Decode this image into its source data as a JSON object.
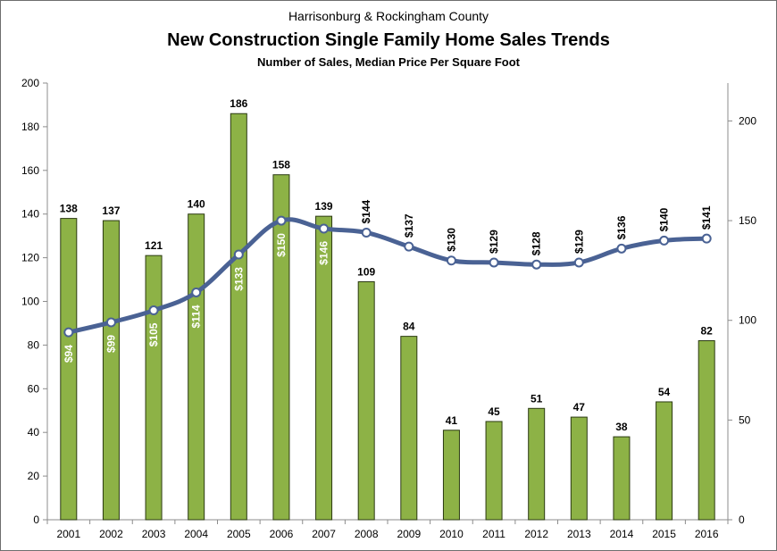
{
  "chart_data": {
    "type": "bar+line",
    "title_top": "Harrisonburg & Rockingham County",
    "title": "New Construction Single Family Home Sales Trends",
    "subtitle": "Number of Sales, Median Price Per Square Foot",
    "categories": [
      "2001",
      "2002",
      "2003",
      "2004",
      "2005",
      "2006",
      "2007",
      "2008",
      "2009",
      "2010",
      "2011",
      "2012",
      "2013",
      "2014",
      "2015",
      "2016"
    ],
    "bars": {
      "values": [
        138,
        137,
        121,
        140,
        186,
        158,
        139,
        109,
        84,
        41,
        45,
        51,
        47,
        38,
        54,
        82
      ],
      "labels": [
        "138",
        "137",
        "121",
        "140",
        "186",
        "158",
        "139",
        "109",
        "84",
        "41",
        "45",
        "51",
        "47",
        "38",
        "54",
        "82"
      ],
      "axis": "left",
      "color": "#8db246",
      "edge_color": "#2b3a12"
    },
    "line": {
      "values": [
        94,
        99,
        105,
        114,
        133,
        150,
        146,
        144,
        137,
        130,
        129,
        128,
        129,
        136,
        140,
        141
      ],
      "labels": [
        "$94",
        "$99",
        "$105",
        "$114",
        "$133",
        "$150",
        "$146",
        "$144",
        "$137",
        "$130",
        "$129",
        "$128",
        "$129",
        "$136",
        "$140",
        "$141"
      ],
      "axis": "right",
      "color": "#4a6294",
      "marker_fill": "#ffffff"
    },
    "left_axis": {
      "ylim": [
        0,
        200
      ],
      "ticks": [
        "0",
        "20",
        "40",
        "60",
        "80",
        "100",
        "120",
        "140",
        "160",
        "180",
        "200"
      ]
    },
    "right_axis": {
      "ylim": [
        0,
        219
      ],
      "ticks": [
        "0",
        "50",
        "100",
        "150",
        "200"
      ]
    },
    "grid": false,
    "legend": "none"
  }
}
